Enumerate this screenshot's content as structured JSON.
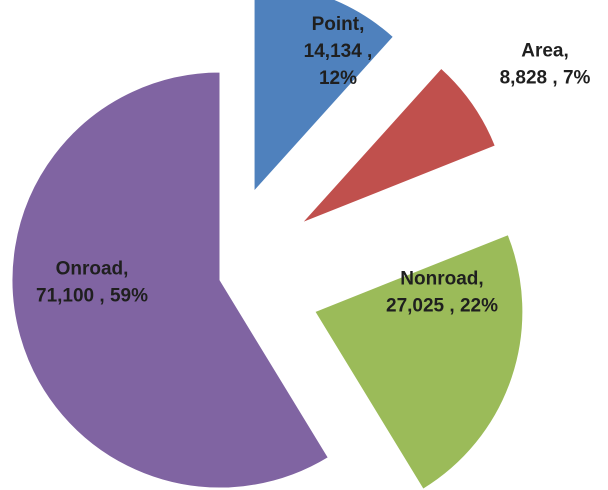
{
  "chart_data": {
    "type": "pie",
    "categories": [
      "Point",
      "Area",
      "Nonroad",
      "Onroad"
    ],
    "values": [
      14134,
      8828,
      27025,
      71100
    ],
    "value_labels": [
      [
        "Point,",
        "14,134 ,",
        "12%"
      ],
      [
        "Area,",
        "8,828 , 7%"
      ],
      [
        "Nonroad,",
        "27,025 , 22%"
      ],
      [
        "Onroad,",
        "71,100 , 59%"
      ]
    ],
    "colors": [
      "#4f81bd",
      "#c0504d",
      "#9bbb59",
      "#8064a2"
    ]
  }
}
